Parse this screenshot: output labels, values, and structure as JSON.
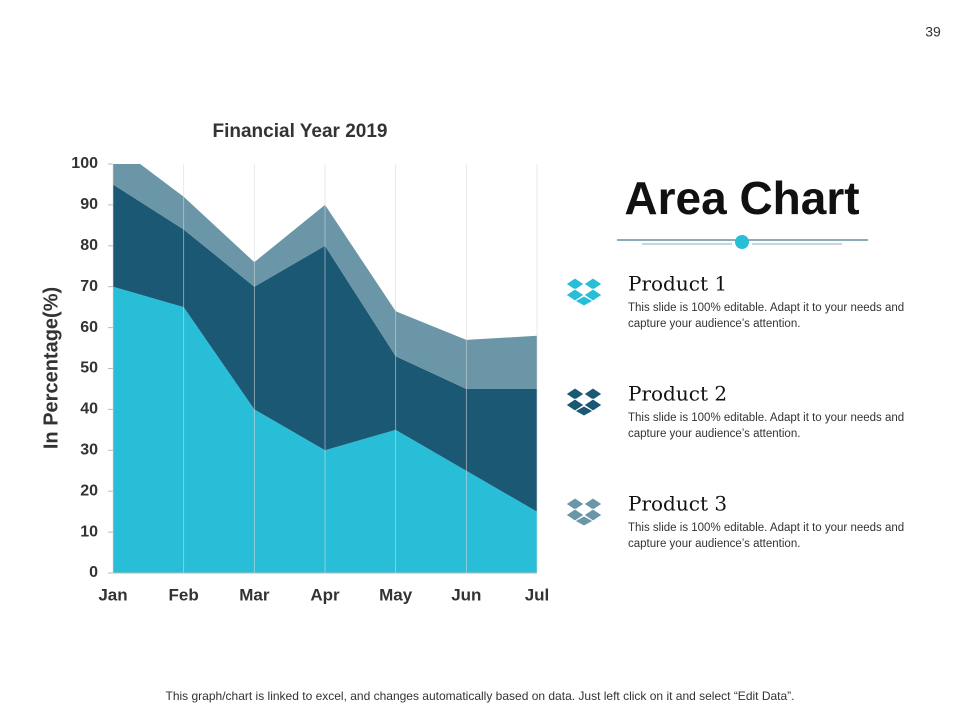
{
  "chart_data": {
    "type": "stacked_area",
    "title": "Financial Year 2019",
    "y_label": "In Percentage(%)",
    "categories": [
      "Jan",
      "Feb",
      "Mar",
      "Apr",
      "May",
      "Jun",
      "Jul"
    ],
    "series": [
      {
        "name": "Product 1",
        "color": "#29bed8",
        "values": [
          70,
          65,
          40,
          30,
          35,
          25,
          15
        ]
      },
      {
        "name": "Product 2",
        "color": "#1a5874",
        "values": [
          25,
          19,
          30,
          50,
          18,
          20,
          30
        ]
      },
      {
        "name": "Product 3",
        "color": "#6a96a8",
        "values": [
          10,
          8,
          6,
          10,
          11,
          12,
          13
        ]
      }
    ],
    "ylim": [
      0,
      100
    ],
    "yticks": [
      0,
      10,
      20,
      30,
      40,
      50,
      60,
      70,
      80,
      90,
      100
    ],
    "grid": "vertical"
  },
  "slide": {
    "number": "39",
    "heading": "Area Chart",
    "descriptions": [
      "This slide is 100% editable. Adapt it to your needs and capture your audience’s attention.",
      "This slide is 100% editable. Adapt it to your needs and capture your audience’s attention.",
      "This slide is 100% editable. Adapt it to your needs and capture your audience’s attention."
    ],
    "footer": "This graph/chart is linked to excel, and changes automatically based on data. Just left click on it and select “Edit Data”."
  }
}
